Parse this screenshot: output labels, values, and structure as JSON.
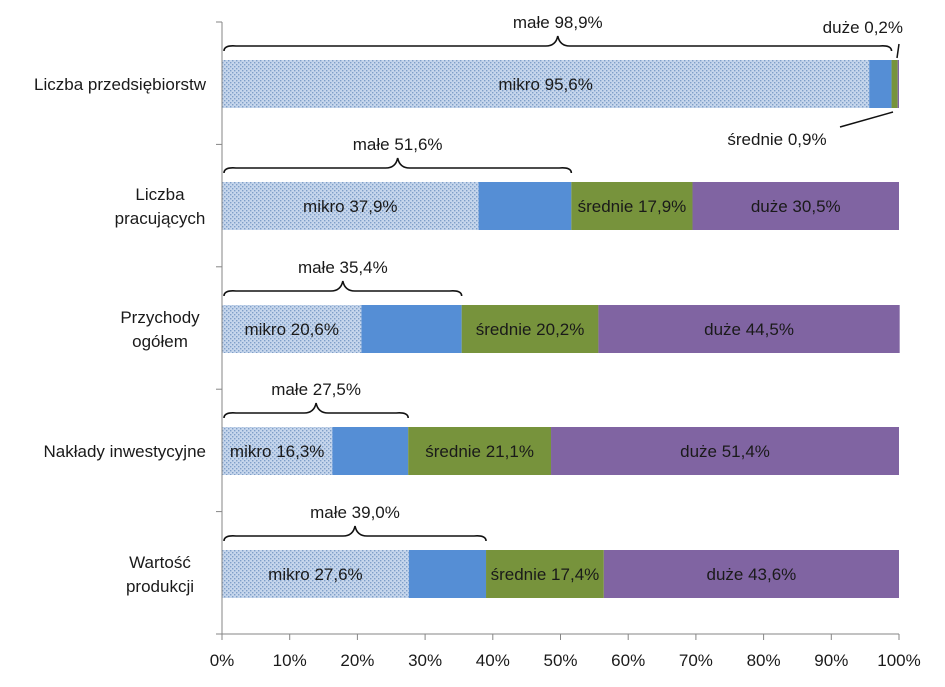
{
  "chart_data": {
    "type": "bar",
    "orientation": "horizontal",
    "stacked": true,
    "percent_scale": true,
    "xlim": [
      0,
      100
    ],
    "x_ticks": [
      "0%",
      "10%",
      "20%",
      "30%",
      "40%",
      "50%",
      "60%",
      "70%",
      "80%",
      "90%",
      "100%"
    ],
    "grid": false,
    "categories": [
      "Liczba przedsiębiorstw",
      "Liczba pracujących",
      "Przychody ogółem",
      "Nakłady inwestycyjne",
      "Wartość produkcji"
    ],
    "series": [
      {
        "key": "mikro",
        "color": "#b9cde5",
        "pattern": "dots",
        "values": [
          95.6,
          37.9,
          20.6,
          16.3,
          27.6
        ]
      },
      {
        "key": "male_rest",
        "color": "#558ed5",
        "values": [
          3.3,
          13.7,
          14.8,
          11.2,
          11.4
        ]
      },
      {
        "key": "srednie",
        "color": "#77933c",
        "values": [
          0.9,
          17.9,
          20.2,
          21.1,
          17.4
        ]
      },
      {
        "key": "duze",
        "color": "#8064a2",
        "values": [
          0.2,
          30.5,
          44.5,
          51.4,
          43.6
        ]
      }
    ],
    "data_labels": [
      [
        "mikro 95,6%",
        "",
        "",
        ""
      ],
      [
        "mikro 37,9%",
        "",
        "średnie 17,9%",
        "duże 30,5%"
      ],
      [
        "mikro 20,6%",
        "",
        "średnie 20,2%",
        "duże 44,5%"
      ],
      [
        "mikro 16,3%",
        "",
        "średnie 21,1%",
        "duże 51,4%"
      ],
      [
        "mikro 27,6%",
        "",
        "średnie 17,4%",
        "duże 43,6%"
      ]
    ],
    "male_totals": [
      98.9,
      51.6,
      35.4,
      27.5,
      39.0
    ],
    "male_labels": [
      "małe 98,9%",
      "małe 51,6%",
      "małe 35,4%",
      "małe 27,5%",
      "małe 39,0%"
    ],
    "callouts": {
      "duze_top": "duże 0,2%",
      "srednie_top": "średnie 0,9%"
    }
  }
}
